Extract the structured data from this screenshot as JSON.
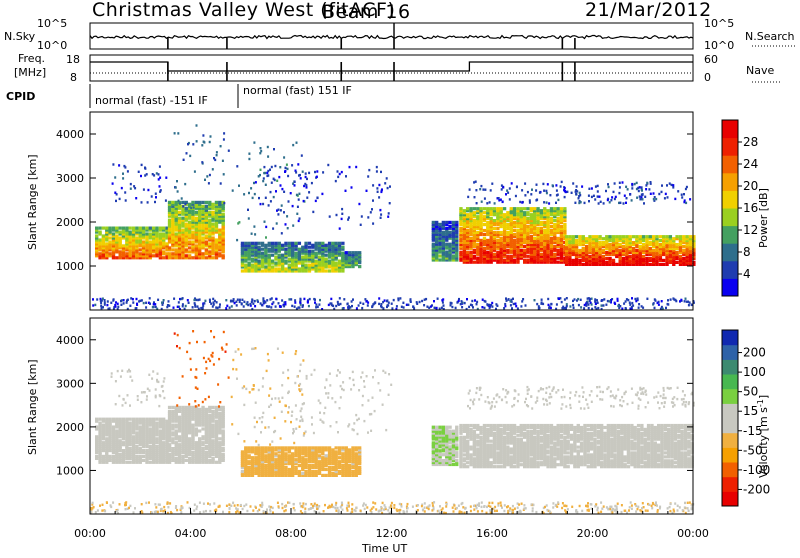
{
  "header": {
    "station": "Christmas Valley West (fitACF)",
    "beam": "Beam 16",
    "date": "21/Mar/2012"
  },
  "noise_panel": {
    "left_label": "N.Sky",
    "right_label": "N.Search",
    "left_ticks": [
      "10^5",
      "10^0"
    ],
    "right_ticks": [
      "10^5",
      "10^0"
    ]
  },
  "freq_panel": {
    "left_label_1": "Freq.",
    "left_label_2": "[MHz]",
    "right_label": "Nave",
    "left_ticks": [
      "18",
      "8"
    ],
    "right_ticks": [
      "60",
      "0"
    ]
  },
  "cpid": {
    "label": "CPID",
    "segments": [
      {
        "start": 0.0,
        "end": 5.5,
        "text": "normal (fast) -151 IF"
      },
      {
        "start": 5.5,
        "end": 24.0,
        "text": "normal (fast) 151 IF"
      }
    ]
  },
  "chart_data": [
    {
      "type": "heatmap",
      "name": "power",
      "ylabel": "Slant Range [km]",
      "xlim": [
        0,
        24
      ],
      "ylim": [
        0,
        4500
      ],
      "y_ticks": [
        1000,
        2000,
        3000,
        4000
      ],
      "colorbar": {
        "label": "Power [dB]",
        "ticks": [
          "4",
          "8",
          "12",
          "16",
          "20",
          "24",
          "28"
        ],
        "colors": [
          "#0a00f0",
          "#1f3cb0",
          "#2e6e8c",
          "#44a060",
          "#9ad020",
          "#f0d000",
          "#f6a000",
          "#f26000",
          "#ee2000",
          "#e80000"
        ]
      },
      "bands": [
        {
          "t0": 0.2,
          "t1": 3.1,
          "r0": 1150,
          "r1": 1850,
          "v": 21
        },
        {
          "t0": 3.1,
          "t1": 5.3,
          "r0": 1150,
          "r1": 2450,
          "v": 20
        },
        {
          "t0": 6.0,
          "t1": 10.0,
          "r0": 850,
          "r1": 1500,
          "v": 14
        },
        {
          "t0": 10.0,
          "t1": 10.7,
          "r0": 950,
          "r1": 1300,
          "v": 12
        },
        {
          "t0": 13.6,
          "t1": 14.6,
          "r0": 1100,
          "r1": 2000,
          "v": 10
        },
        {
          "t0": 14.7,
          "t1": 18.9,
          "r0": 1050,
          "r1": 2300,
          "v": 24
        },
        {
          "t0": 18.9,
          "t1": 24.0,
          "r0": 1000,
          "r1": 1650,
          "v": 26
        }
      ],
      "sparse": [
        {
          "t0": 0.8,
          "t1": 3.0,
          "r0": 2400,
          "r1": 3300,
          "v": 6
        },
        {
          "t0": 3.3,
          "t1": 5.5,
          "r0": 2300,
          "r1": 4200,
          "v": 8
        },
        {
          "t0": 5.6,
          "t1": 8.5,
          "r0": 1500,
          "r1": 3800,
          "v": 9
        },
        {
          "t0": 6.5,
          "t1": 12.0,
          "r0": 1800,
          "r1": 3300,
          "v": 5
        },
        {
          "t0": 15.0,
          "t1": 24.0,
          "r0": 2400,
          "r1": 2900,
          "v": 6
        },
        {
          "t0": 0.0,
          "t1": 24.0,
          "r0": 0,
          "r1": 250,
          "v": 6
        }
      ]
    },
    {
      "type": "heatmap",
      "name": "velocity",
      "ylabel": "Slant Range [km]",
      "xlabel": "Time UT",
      "xlim": [
        0,
        24
      ],
      "ylim": [
        0,
        4500
      ],
      "x_ticks": [
        "00:00",
        "04:00",
        "08:00",
        "12:00",
        "16:00",
        "20:00",
        "00:00"
      ],
      "y_ticks": [
        1000,
        2000,
        3000,
        4000
      ],
      "colorbar": {
        "label": "Velocity [m s^-1]",
        "ticks": [
          "200",
          "100",
          "50",
          "15",
          "-15",
          "-50",
          "-100",
          "-200"
        ],
        "colors": [
          "#1028b0",
          "#2e62a8",
          "#3c8a70",
          "#48b850",
          "#7ad040",
          "#c8c8c0",
          "#c8c8c0",
          "#f0b040",
          "#f6a000",
          "#f26000",
          "#ee2000",
          "#e80000"
        ]
      },
      "bands": [
        {
          "t0": 0.2,
          "t1": 3.1,
          "r0": 1150,
          "r1": 2150,
          "v": 0
        },
        {
          "t0": 3.1,
          "t1": 5.3,
          "r0": 1150,
          "r1": 2450,
          "v": 0
        },
        {
          "t0": 6.0,
          "t1": 10.7,
          "r0": 850,
          "r1": 1500,
          "v": -60
        },
        {
          "t0": 13.6,
          "t1": 14.6,
          "r0": 1100,
          "r1": 2000,
          "v": 40
        },
        {
          "t0": 14.7,
          "t1": 24.0,
          "r0": 1050,
          "r1": 2000,
          "v": 0
        }
      ],
      "sparse": [
        {
          "t0": 0.8,
          "t1": 3.0,
          "r0": 2400,
          "r1": 3300,
          "v": 0
        },
        {
          "t0": 3.3,
          "t1": 5.5,
          "r0": 2300,
          "r1": 4200,
          "v": -150
        },
        {
          "t0": 5.6,
          "t1": 8.5,
          "r0": 1500,
          "r1": 3800,
          "v": -50
        },
        {
          "t0": 6.5,
          "t1": 12.0,
          "r0": 1800,
          "r1": 3300,
          "v": 0
        },
        {
          "t0": 15.0,
          "t1": 24.0,
          "r0": 2400,
          "r1": 2900,
          "v": 0
        },
        {
          "t0": 0.0,
          "t1": 24.0,
          "r0": 0,
          "r1": 250,
          "v": -40
        }
      ]
    }
  ]
}
